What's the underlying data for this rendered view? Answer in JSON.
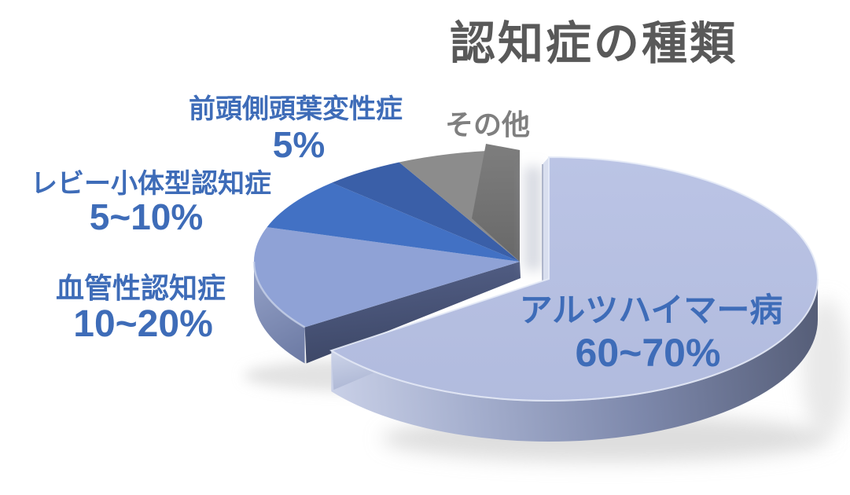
{
  "title": "認知症の種類",
  "colors": {
    "title_text": "#595959",
    "label_blue": "#3E6CB8",
    "label_gray": "#7F7F7F",
    "background": "#FFFFFF"
  },
  "chart_data": {
    "type": "pie",
    "title": "認知症の種類",
    "effect": "3d-exploded",
    "start_angle_deg": 0,
    "direction": "clockwise",
    "legend_position": "none",
    "slices": [
      {
        "label": "アルツハイマー病",
        "value_label": "60~70%",
        "value_pct": 65,
        "color": "#B6C0E2",
        "exploded": true,
        "label_color": "#3E6CB8"
      },
      {
        "label": "血管性認知症",
        "value_label": "10~20%",
        "value_pct": 15,
        "color": "#8FA2D6",
        "exploded": false,
        "label_color": "#3E6CB8"
      },
      {
        "label": "レビー小体型認知症",
        "value_label": "5~10%",
        "value_pct": 7.5,
        "color": "#4271C4",
        "exploded": false,
        "label_color": "#3E6CB8"
      },
      {
        "label": "前頭側頭葉変性症",
        "value_label": "5%",
        "value_pct": 5,
        "color": "#3A5FA8",
        "exploded": false,
        "label_color": "#3E6CB8"
      },
      {
        "label": "その他",
        "value_label": "",
        "value_pct": 7.5,
        "color": "#8C8C8C",
        "exploded": false,
        "label_color": "#7F7F7F"
      }
    ]
  }
}
